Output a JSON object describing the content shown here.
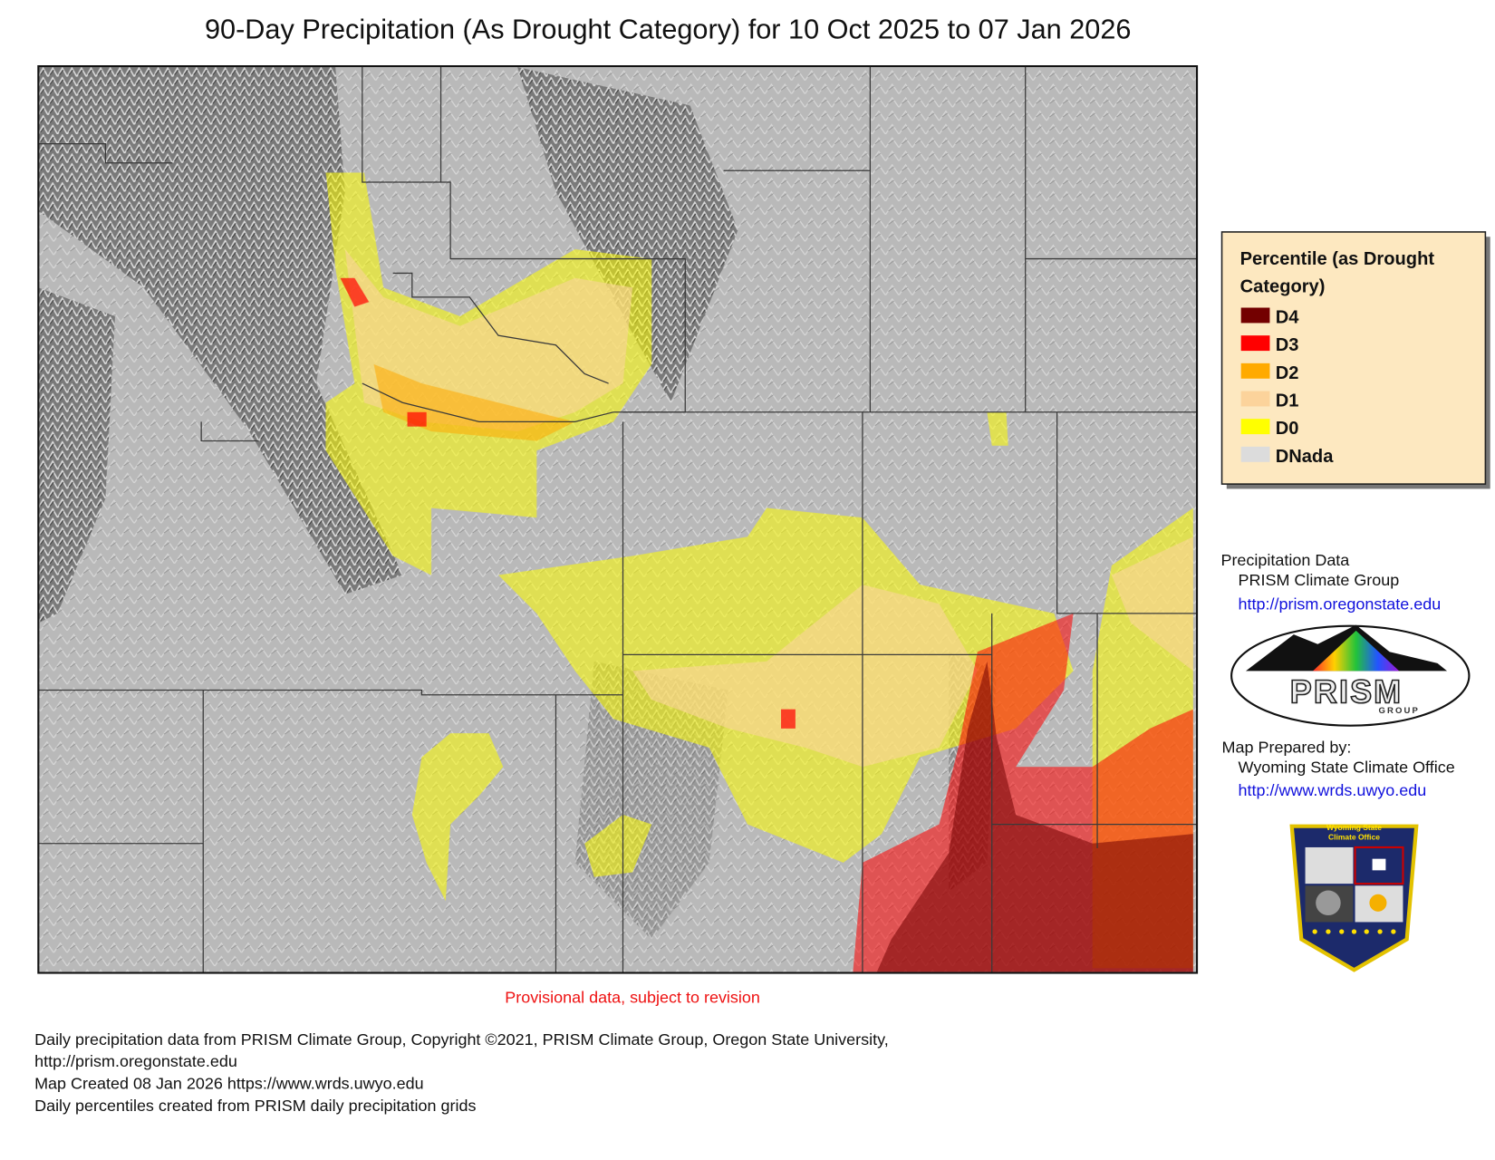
{
  "title": "90-Day Precipitation (As Drought Category) for 10 Oct 2025 to 07 Jan 2026",
  "legend": {
    "title": "Percentile (as Drought Category)",
    "items": [
      {
        "label": "D4",
        "color": "#730000"
      },
      {
        "label": "D3",
        "color": "#ff0000"
      },
      {
        "label": "D2",
        "color": "#ffaa00"
      },
      {
        "label": "D1",
        "color": "#fcd39b"
      },
      {
        "label": "D0",
        "color": "#ffff00"
      },
      {
        "label": "DNada",
        "color": "#dcdcdc"
      }
    ]
  },
  "credits": {
    "data_heading": "Precipitation Data",
    "data_source": "PRISM Climate Group",
    "data_url": "http://prism.oregonstate.edu",
    "prepared_heading": "Map Prepared by:",
    "prepared_by": "Wyoming State Climate Office",
    "prepared_url": "http://www.wrds.uwyo.edu"
  },
  "logos": {
    "prism_word": "PRISM",
    "prism_sub": "GROUP",
    "badge_line_1": "Wyoming State",
    "badge_line_2": "Climate Office"
  },
  "provisional": "Provisional data, subject to revision",
  "footer": [
    "Daily precipitation data from PRISM Climate Group, Copyright ©2021, PRISM Climate Group, Oregon State University,",
    "http://prism.oregonstate.edu",
    "Map Created 08 Jan 2026 https://www.wrds.uwyo.edu",
    "Daily percentiles created from PRISM daily precipitation grids"
  ]
}
